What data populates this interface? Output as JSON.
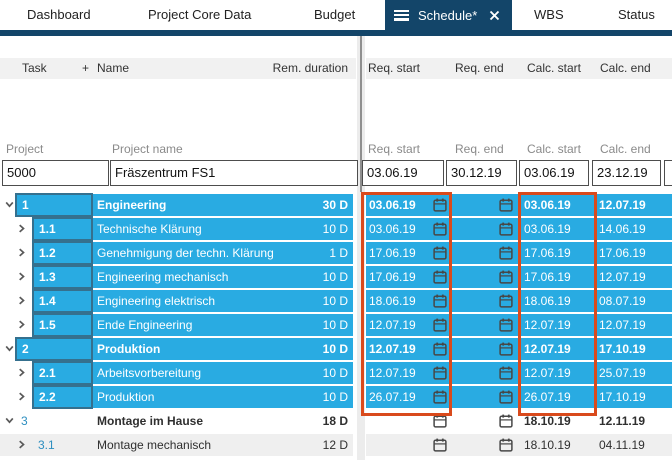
{
  "tab_bar": {
    "tabs": [
      "Dashboard",
      "Project Core Data",
      "Budget",
      "WBS",
      "Status"
    ],
    "active_tab": {
      "label": "Schedule*"
    }
  },
  "table_headers": {
    "left": {
      "task": "Task",
      "add": "+",
      "name": "Name",
      "duration": "Rem. duration"
    },
    "right": {
      "req_start": "Req. start",
      "req_end": "Req. end",
      "calc_start": "Calc. start",
      "calc_end": "Calc. end"
    }
  },
  "project_section": {
    "labels": {
      "project": "Project",
      "project_name": "Project name",
      "req_start": "Req. start",
      "req_end": "Req. end",
      "calc_start": "Calc. start",
      "calc_end": "Calc. end"
    },
    "values": {
      "id": "5000",
      "name": "Fräszentrum FS1",
      "req_start": "03.06.19",
      "req_end": "30.12.19",
      "calc_start": "03.06.19",
      "calc_end": "23.12.19"
    }
  },
  "rows": [
    {
      "task": "1",
      "name": "Engineering",
      "duration": "30 D",
      "req_start": "03.06.19",
      "req_end": "",
      "calc_start": "03.06.19",
      "calc_end": "12.07.19",
      "level": 1,
      "expanded": true,
      "emphasis": true,
      "style": "selected"
    },
    {
      "task": "1.1",
      "name": "Technische Klärung",
      "duration": "10 D",
      "req_start": "03.06.19",
      "req_end": "",
      "calc_start": "03.06.19",
      "calc_end": "14.06.19",
      "level": 2,
      "expanded": false,
      "emphasis": false,
      "style": "selected"
    },
    {
      "task": "1.2",
      "name": "Genehmigung der techn. Klärung",
      "duration": "1 D",
      "req_start": "17.06.19",
      "req_end": "",
      "calc_start": "17.06.19",
      "calc_end": "17.06.19",
      "level": 2,
      "expanded": false,
      "emphasis": false,
      "style": "selected"
    },
    {
      "task": "1.3",
      "name": "Engineering mechanisch",
      "duration": "10 D",
      "req_start": "17.06.19",
      "req_end": "",
      "calc_start": "17.06.19",
      "calc_end": "12.07.19",
      "level": 2,
      "expanded": false,
      "emphasis": false,
      "style": "selected"
    },
    {
      "task": "1.4",
      "name": "Engineering elektrisch",
      "duration": "10 D",
      "req_start": "18.06.19",
      "req_end": "",
      "calc_start": "18.06.19",
      "calc_end": "08.07.19",
      "level": 2,
      "expanded": false,
      "emphasis": false,
      "style": "selected"
    },
    {
      "task": "1.5",
      "name": "Ende Engineering",
      "duration": "10 D",
      "req_start": "12.07.19",
      "req_end": "",
      "calc_start": "12.07.19",
      "calc_end": "12.07.19",
      "level": 2,
      "expanded": false,
      "emphasis": false,
      "style": "selected"
    },
    {
      "task": "2",
      "name": "Produktion",
      "duration": "10 D",
      "req_start": "12.07.19",
      "req_end": "",
      "calc_start": "12.07.19",
      "calc_end": "17.10.19",
      "level": 1,
      "expanded": true,
      "emphasis": true,
      "style": "selected"
    },
    {
      "task": "2.1",
      "name": "Arbeitsvorbereitung",
      "duration": "10 D",
      "req_start": "12.07.19",
      "req_end": "",
      "calc_start": "12.07.19",
      "calc_end": "25.07.19",
      "level": 2,
      "expanded": false,
      "emphasis": false,
      "style": "selected"
    },
    {
      "task": "2.2",
      "name": "Produktion",
      "duration": "10 D",
      "req_start": "26.07.19",
      "req_end": "",
      "calc_start": "26.07.19",
      "calc_end": "17.10.19",
      "level": 2,
      "expanded": false,
      "emphasis": false,
      "style": "selected"
    },
    {
      "task": "3",
      "name": "Montage im Hause",
      "duration": "18 D",
      "req_start": "",
      "req_end": "",
      "calc_start": "18.10.19",
      "calc_end": "12.11.19",
      "level": 1,
      "expanded": true,
      "emphasis": true,
      "style": "plain"
    },
    {
      "task": "3.1",
      "name": "Montage mechanisch",
      "duration": "12 D",
      "req_start": "",
      "req_end": "",
      "calc_start": "18.10.19",
      "calc_end": "04.11.19",
      "level": 2,
      "expanded": false,
      "emphasis": false,
      "style": "striped"
    }
  ],
  "colors": {
    "row_highlight_blue": "#29abe2",
    "tab_navy": "#134569",
    "annotation_red": "#d94a1c",
    "header_gray": "#f1f1f1"
  }
}
